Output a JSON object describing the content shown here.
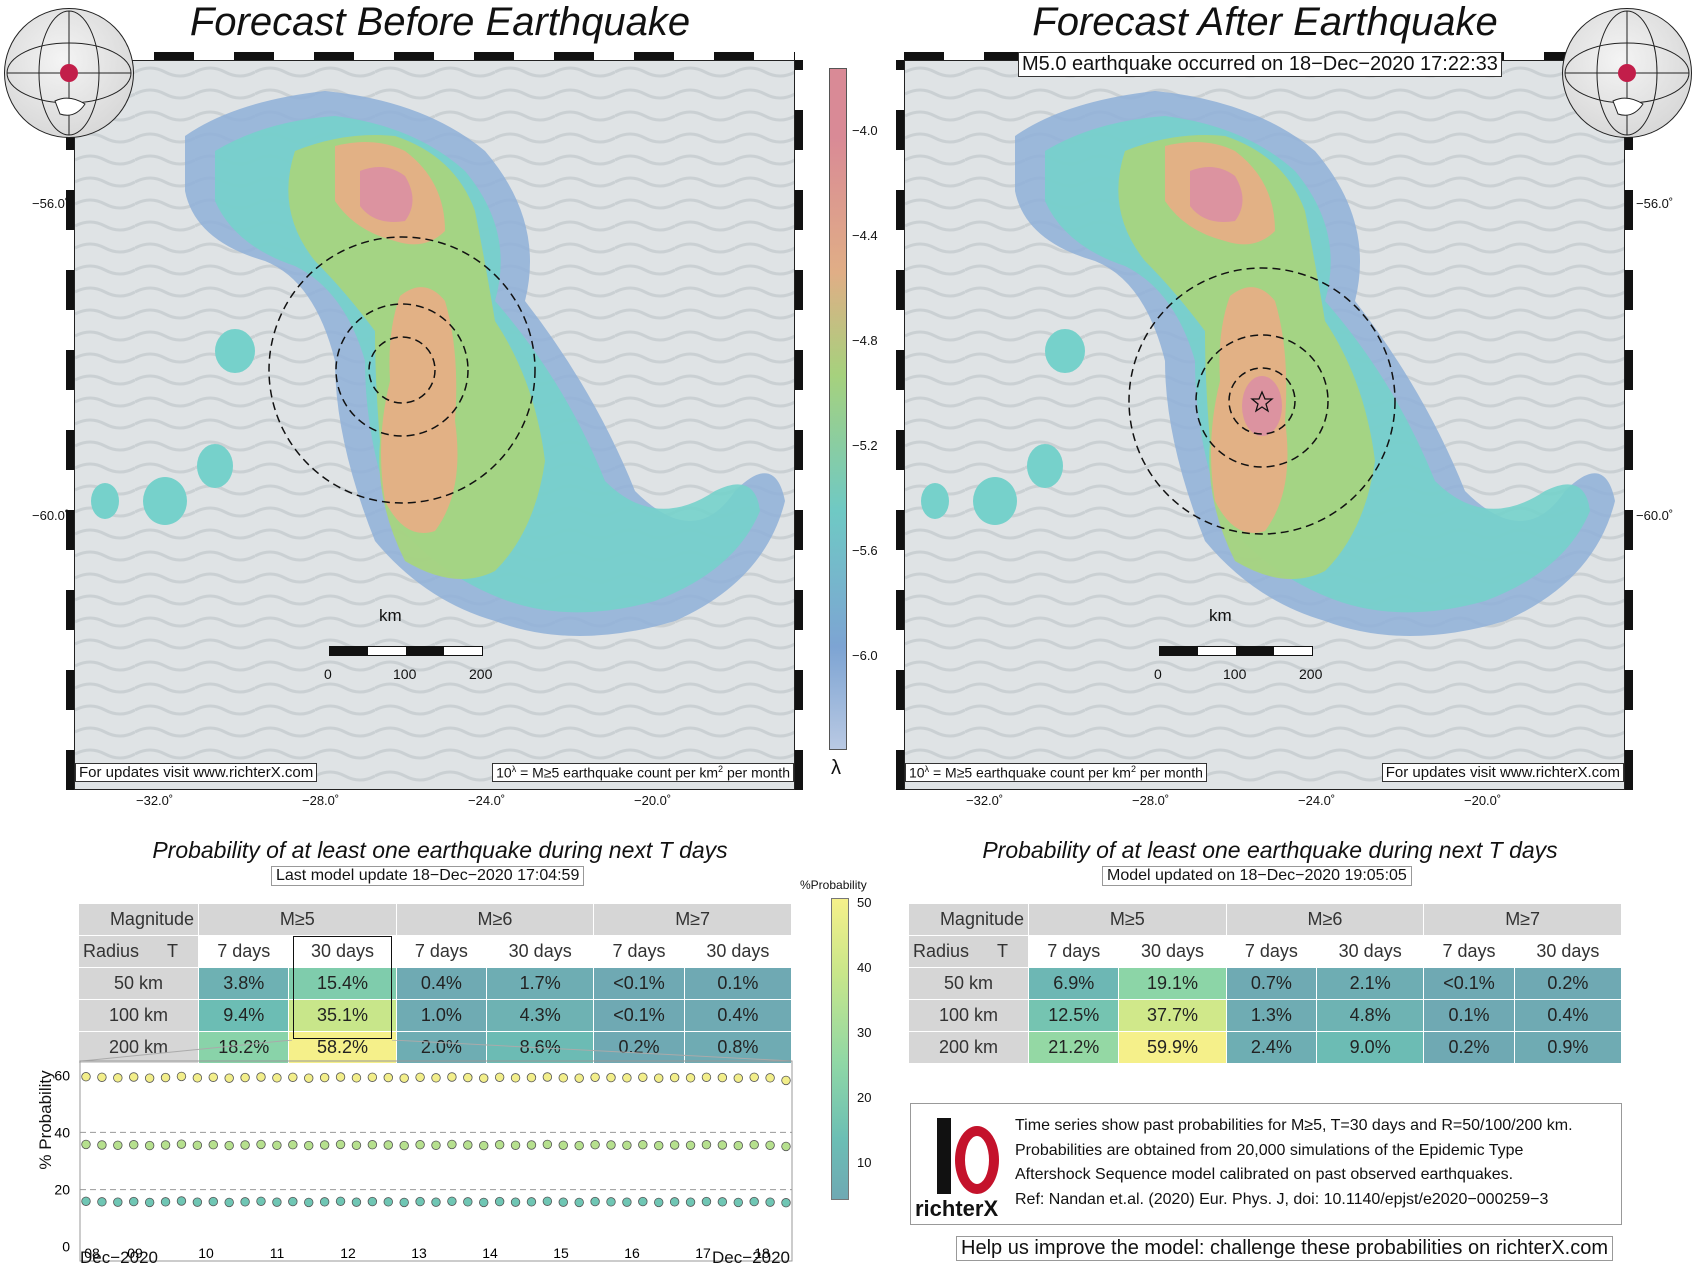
{
  "left_title": "Forecast Before Earthquake",
  "right_title": "Forecast After Earthquake",
  "right_banner": "M5.0 earthquake occurred on 18−Dec−2020 17:22:33",
  "updates_note": "For updates visit www.richterX.com",
  "lambda_note": "10λ = M≥5 earthquake count per km2 per month",
  "scale_km_label": "km",
  "scale_ticks": [
    "0",
    "100",
    "200"
  ],
  "lat_ticks": [
    "−56.0˚",
    "−60.0˚"
  ],
  "lon_ticks": [
    "−32.0˚",
    "−28.0˚",
    "−24.0˚",
    "−20.0˚"
  ],
  "lambda_cbar": {
    "symbol": "λ",
    "ticks": [
      "−4.0",
      "−4.4",
      "−4.8",
      "−5.2",
      "−5.6",
      "−6.0"
    ],
    "colors": [
      "#d98a96",
      "#e0ae86",
      "#a6d17d",
      "#6fc9c4",
      "#7da4d3"
    ]
  },
  "prob_cbar": {
    "label": "%Probability",
    "ticks": [
      "50",
      "40",
      "30",
      "20",
      "10"
    ]
  },
  "left_prob": {
    "title": "Probability of at least one earthquake during next T days",
    "subtitle": "Last model update 18−Dec−2020 17:04:59"
  },
  "right_prob": {
    "title": "Probability of at least one earthquake during next T days",
    "subtitle": "Model updated on 18−Dec−2020 19:05:05"
  },
  "table_headers": {
    "magnitude": "Magnitude",
    "radius": "Radius",
    "T": "T",
    "mags": [
      "M≥5",
      "M≥6",
      "M≥7"
    ],
    "periods": [
      "7 days",
      "30 days",
      "7 days",
      "30 days",
      "7 days",
      "30 days"
    ],
    "radii": [
      "50 km",
      "100 km",
      "200 km"
    ]
  },
  "left_table": [
    [
      "3.8%",
      "15.4%",
      "0.4%",
      "1.7%",
      "<0.1%",
      "0.1%"
    ],
    [
      "9.4%",
      "35.1%",
      "1.0%",
      "4.3%",
      "<0.1%",
      "0.4%"
    ],
    [
      "18.2%",
      "58.2%",
      "2.0%",
      "8.6%",
      "0.2%",
      "0.8%"
    ]
  ],
  "left_table_values": [
    [
      3.8,
      15.4,
      0.4,
      1.7,
      0.05,
      0.1
    ],
    [
      9.4,
      35.1,
      1.0,
      4.3,
      0.05,
      0.4
    ],
    [
      18.2,
      58.2,
      2.0,
      8.6,
      0.2,
      0.8
    ]
  ],
  "right_table": [
    [
      "6.9%",
      "19.1%",
      "0.7%",
      "2.1%",
      "<0.1%",
      "0.2%"
    ],
    [
      "12.5%",
      "37.7%",
      "1.3%",
      "4.8%",
      "0.1%",
      "0.4%"
    ],
    [
      "21.2%",
      "59.9%",
      "2.4%",
      "9.0%",
      "0.2%",
      "0.9%"
    ]
  ],
  "right_table_values": [
    [
      6.9,
      19.1,
      0.7,
      2.1,
      0.05,
      0.2
    ],
    [
      12.5,
      37.7,
      1.3,
      4.8,
      0.1,
      0.4
    ],
    [
      21.2,
      59.9,
      2.4,
      9.0,
      0.2,
      0.9
    ]
  ],
  "chart_data": {
    "type": "scatter",
    "ylabel": "% Probability",
    "ylim": [
      -5,
      65
    ],
    "yticks": [
      "60",
      "40",
      "20",
      "0"
    ],
    "xticks": [
      "08",
      "09",
      "10",
      "11",
      "12",
      "13",
      "14",
      "15",
      "16",
      "17",
      "18"
    ],
    "x_start_label": "Dec−2020",
    "x_end_label": "Dec−2020",
    "grid": "dashed horizontal at 20, 40",
    "series": [
      {
        "color": "#f2ee8a",
        "values": [
          59.5,
          59.3,
          59.1,
          59.4,
          59.0,
          59.2,
          59.6,
          59.1,
          59.3,
          59.0,
          59.2,
          59.4,
          59.1,
          59.3,
          59.0,
          59.2,
          59.4,
          59.1,
          59.3,
          59.2,
          59.0,
          59.3,
          59.1,
          59.4,
          59.2,
          59.0,
          59.3,
          59.1,
          59.2,
          59.4,
          59.1,
          59.0,
          59.3,
          59.2,
          59.1,
          59.3,
          59.0,
          59.2,
          59.1,
          59.3,
          59.2,
          59.0,
          59.3,
          59.1,
          58.2
        ]
      },
      {
        "color": "#b6e08e",
        "values": [
          35.8,
          35.6,
          35.5,
          35.7,
          35.4,
          35.6,
          35.9,
          35.5,
          35.7,
          35.4,
          35.6,
          35.8,
          35.5,
          35.7,
          35.4,
          35.6,
          35.8,
          35.5,
          35.7,
          35.6,
          35.4,
          35.7,
          35.5,
          35.8,
          35.6,
          35.4,
          35.7,
          35.5,
          35.6,
          35.8,
          35.5,
          35.4,
          35.7,
          35.6,
          35.5,
          35.7,
          35.4,
          35.6,
          35.5,
          35.7,
          35.6,
          35.4,
          35.7,
          35.5,
          35.1
        ]
      },
      {
        "color": "#6fc6b4",
        "values": [
          15.9,
          15.7,
          15.6,
          15.8,
          15.5,
          15.7,
          16.0,
          15.6,
          15.8,
          15.5,
          15.7,
          15.9,
          15.6,
          15.8,
          15.5,
          15.7,
          15.9,
          15.6,
          15.8,
          15.7,
          15.5,
          15.8,
          15.6,
          15.9,
          15.7,
          15.5,
          15.8,
          15.6,
          15.7,
          15.9,
          15.6,
          15.5,
          15.8,
          15.7,
          15.6,
          15.8,
          15.5,
          15.7,
          15.6,
          15.8,
          15.7,
          15.5,
          15.8,
          15.6,
          15.4
        ]
      }
    ]
  },
  "info_lines": [
    "Time series show past probabilities for M≥5, T=30 days and R=50/100/200 km.",
    "Probabilities are obtained from 20,000 simulations of the Epidemic Type",
    "Aftershock Sequence model calibrated on past observed earthquakes.",
    "Ref: Nandan et.al. (2020) Eur. Phys. J, doi: 10.1140/epjst/e2020−000259−3"
  ],
  "logo_text": "richterX",
  "help_text": "Help us improve the model: challenge these probabilities on richterX.com"
}
